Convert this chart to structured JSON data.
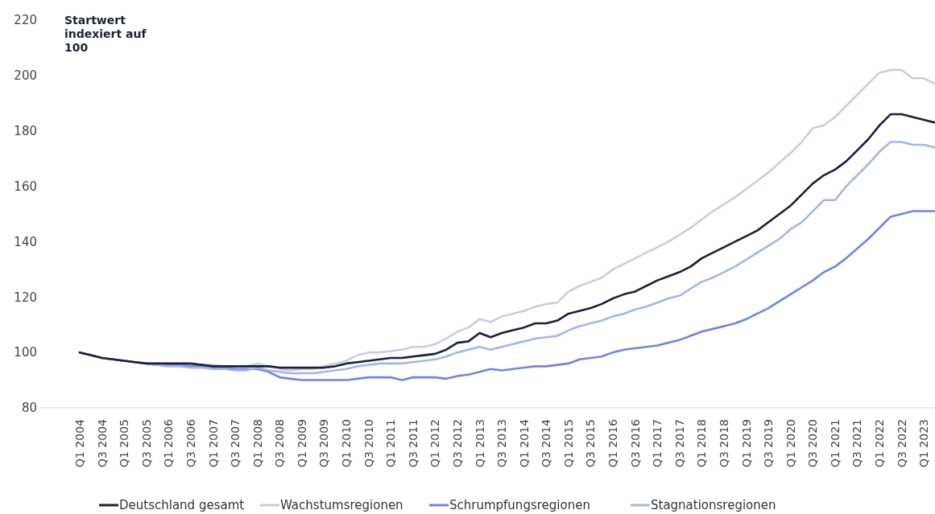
{
  "chart_data": {
    "type": "line",
    "ylabel": "Startwert indexiert auf 100",
    "categories": [
      "Q1 2004",
      null,
      "Q3 2004",
      null,
      "Q1 2005",
      null,
      "Q3 2005",
      null,
      "Q1 2006",
      null,
      "Q3 2006",
      null,
      "Q1 2007",
      null,
      "Q3 2007",
      null,
      "Q1 2008",
      null,
      "Q3 2008",
      null,
      "Q1 2009",
      null,
      "Q3 2009",
      null,
      "Q1 2010",
      null,
      "Q3 2010",
      null,
      "Q1 2011",
      null,
      "Q3 2011",
      null,
      "Q1 2012",
      null,
      "Q3 2012",
      null,
      "Q1 2013",
      null,
      "Q3 2013",
      null,
      "Q1 2014",
      null,
      "Q3 2014",
      null,
      "Q1 2015",
      null,
      "Q3 2015",
      null,
      "Q1 2016",
      null,
      "Q3 2016",
      null,
      "Q1 2017",
      null,
      "Q3 2017",
      null,
      "Q1 2018",
      null,
      "Q3 2018",
      null,
      "Q1 2019",
      null,
      "Q3 2019",
      null,
      "Q1 2020",
      null,
      "Q3 2020",
      null,
      "Q1 2021",
      null,
      "Q3 2021",
      null,
      "Q1 2022",
      null,
      "Q3 2022",
      null,
      "Q1 2023",
      null
    ],
    "series": [
      {
        "name": "Deutschland gesamt",
        "color": "#1a1f3d",
        "values": [
          100,
          99,
          98,
          97.5,
          97,
          96.5,
          96,
          96,
          96,
          96,
          96,
          95.5,
          95,
          95,
          95,
          95,
          95,
          95,
          94.5,
          94.5,
          94.5,
          94.5,
          94.5,
          95,
          96,
          96.5,
          97,
          97.5,
          98,
          98,
          98.5,
          99,
          99.5,
          101,
          103.5,
          104,
          107,
          105.5,
          107,
          108,
          109,
          110.5,
          110.5,
          111.5,
          114,
          115,
          116,
          117.5,
          119.5,
          121,
          122,
          124,
          126,
          127.5,
          129,
          131,
          134,
          136,
          138,
          140,
          142,
          144,
          147,
          150,
          153,
          157,
          161,
          164,
          166,
          169,
          173,
          177,
          182,
          186,
          186,
          185,
          184,
          183
        ]
      },
      {
        "name": "Wachstumsregionen",
        "color": "#c9cde3",
        "values": [
          100,
          99,
          98,
          97.5,
          97,
          96.5,
          96,
          95.5,
          95.5,
          95.5,
          95.5,
          95.5,
          95.5,
          95,
          95,
          95,
          96,
          95,
          94,
          93.5,
          94,
          94,
          95,
          96,
          97,
          99,
          100,
          100,
          100.5,
          101,
          102,
          102,
          103,
          105,
          107.5,
          109,
          112,
          111,
          113,
          114,
          115,
          116.5,
          117.5,
          118,
          122,
          124,
          125.5,
          127,
          130,
          132,
          134,
          136,
          138,
          140,
          142.5,
          145,
          148,
          151,
          153.5,
          156,
          159,
          162,
          165,
          168.5,
          172,
          176,
          181,
          182,
          185,
          189,
          193,
          197,
          201,
          202,
          202,
          199,
          199,
          197
        ]
      },
      {
        "name": "Schrumpfungsregionen",
        "color": "#6e85e6",
        "values": [
          100,
          99,
          98,
          97.5,
          97,
          96.5,
          96,
          95.5,
          95.5,
          95.5,
          95,
          95,
          94.5,
          94.5,
          94,
          94,
          94,
          93,
          91,
          90.5,
          90,
          90,
          90,
          90,
          90,
          90.5,
          91,
          91,
          91,
          90,
          91,
          91,
          91,
          90.5,
          91.5,
          92,
          93,
          94,
          93.5,
          94,
          94.5,
          95,
          95,
          95.5,
          96,
          97.5,
          98,
          98.5,
          100,
          101,
          101.5,
          102,
          102.5,
          103.5,
          104.5,
          106,
          107.5,
          108.5,
          109.5,
          110.5,
          112,
          114,
          116,
          118.5,
          121,
          123.5,
          126,
          129,
          131,
          134,
          137.5,
          141,
          145,
          149,
          150,
          151,
          151,
          151
        ]
      },
      {
        "name": "Stagnationsregionen",
        "color": "#a5b4ec",
        "values": [
          100,
          99,
          98,
          97.5,
          97,
          96.5,
          96,
          95.5,
          95,
          95,
          94.5,
          94.5,
          94,
          94,
          93.5,
          93.5,
          94.5,
          93.5,
          93,
          92.5,
          92.5,
          92.5,
          93,
          93.5,
          94,
          95,
          95.5,
          96,
          96,
          96,
          96.5,
          97,
          97.5,
          98.5,
          100,
          101,
          102,
          101,
          102,
          103,
          104,
          105,
          105.5,
          106,
          108,
          109.5,
          110.5,
          111.5,
          113,
          114,
          115.5,
          116.5,
          118,
          119.5,
          120.5,
          123,
          125.5,
          127,
          129,
          131,
          133.5,
          136,
          138.5,
          141,
          144.5,
          147,
          151,
          155,
          155,
          160,
          164,
          168,
          172.5,
          176,
          176,
          175,
          175,
          174
        ]
      }
    ],
    "ylim": [
      80,
      220
    ],
    "yticks": [
      80,
      100,
      120,
      140,
      160,
      180,
      200,
      220
    ],
    "grid": false,
    "legend": "bottom",
    "line_style": "solid",
    "marker": "none"
  }
}
